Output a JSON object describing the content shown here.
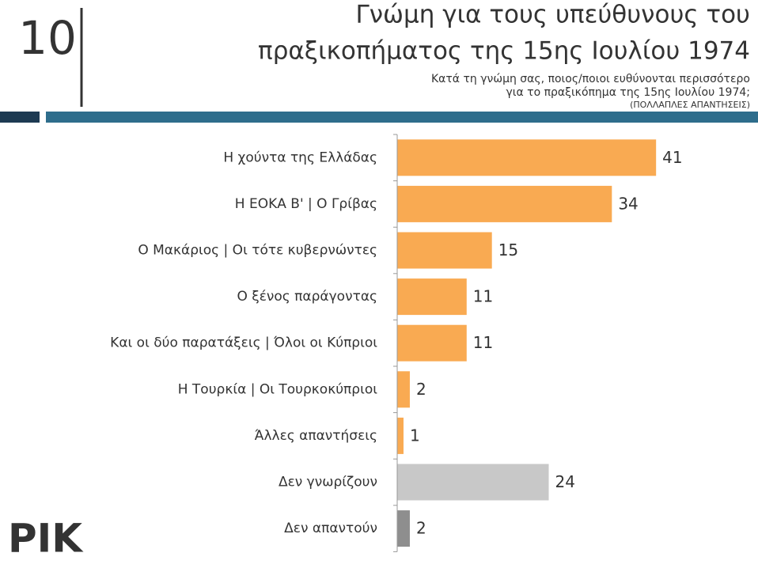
{
  "slide": {
    "page_number": "10",
    "logo": "ΡΙΚ"
  },
  "chart_data": {
    "type": "bar",
    "title": [
      "Γνώμη για τους υπεύθυνους του",
      "πραξικοπήματος της 15ης Ιουλίου 1974"
    ],
    "subtitle": [
      "Κατά τη γνώμη σας, ποιος/ποιοι ευθύνονται περισσότερο",
      "για το πραξικόπημα της 15ης Ιουλίου 1974;"
    ],
    "note": "(ΠΟΛΛΑΠΛΕΣ ΑΠΑΝΤΗΣΕΙΣ)",
    "categories": [
      "Η χούντα της Ελλάδας",
      "Η ΕΟΚΑ Β' | Ο Γρίβας",
      "Ο Μακάριος | Οι τότε κυβερνώντες",
      "Ο ξένος παράγοντας",
      "Και οι δύο παρατάξεις | Όλοι οι Κύπριοι",
      "Η Τουρκία | Οι Τουρκοκύπριοι",
      "Άλλες απαντήσεις",
      "Δεν γνωρίζουν",
      "Δεν απαντούν"
    ],
    "values": [
      41,
      34,
      15,
      11,
      11,
      2,
      1,
      24,
      2
    ],
    "colors": [
      "#f9aa52",
      "#f9aa52",
      "#f9aa52",
      "#f9aa52",
      "#f9aa52",
      "#f9aa52",
      "#f9aa52",
      "#c8c8c8",
      "#8e8e8e"
    ]
  }
}
